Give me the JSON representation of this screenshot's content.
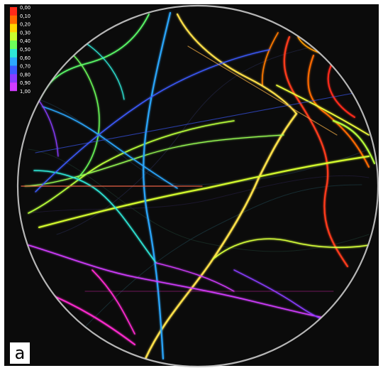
{
  "figure": {
    "panel_label": "a",
    "colorbar": {
      "ticks": [
        "0,00",
        "0,10",
        "0,20",
        "0,30",
        "0,40",
        "0,50",
        "0,60",
        "0,70",
        "0,80",
        "0,90",
        "1,00"
      ],
      "colors": [
        "#ff2a1a",
        "#ff6a00",
        "#ffd400",
        "#c9ff2e",
        "#6cff5a",
        "#2ee6d6",
        "#2ca8ff",
        "#3d5bff",
        "#8a3cff",
        "#d23cff",
        "#ff2bd0"
      ]
    },
    "colors": {
      "background": "#0b0b0b",
      "frame": "#ffffff",
      "ring": "#c9c9c9"
    }
  }
}
